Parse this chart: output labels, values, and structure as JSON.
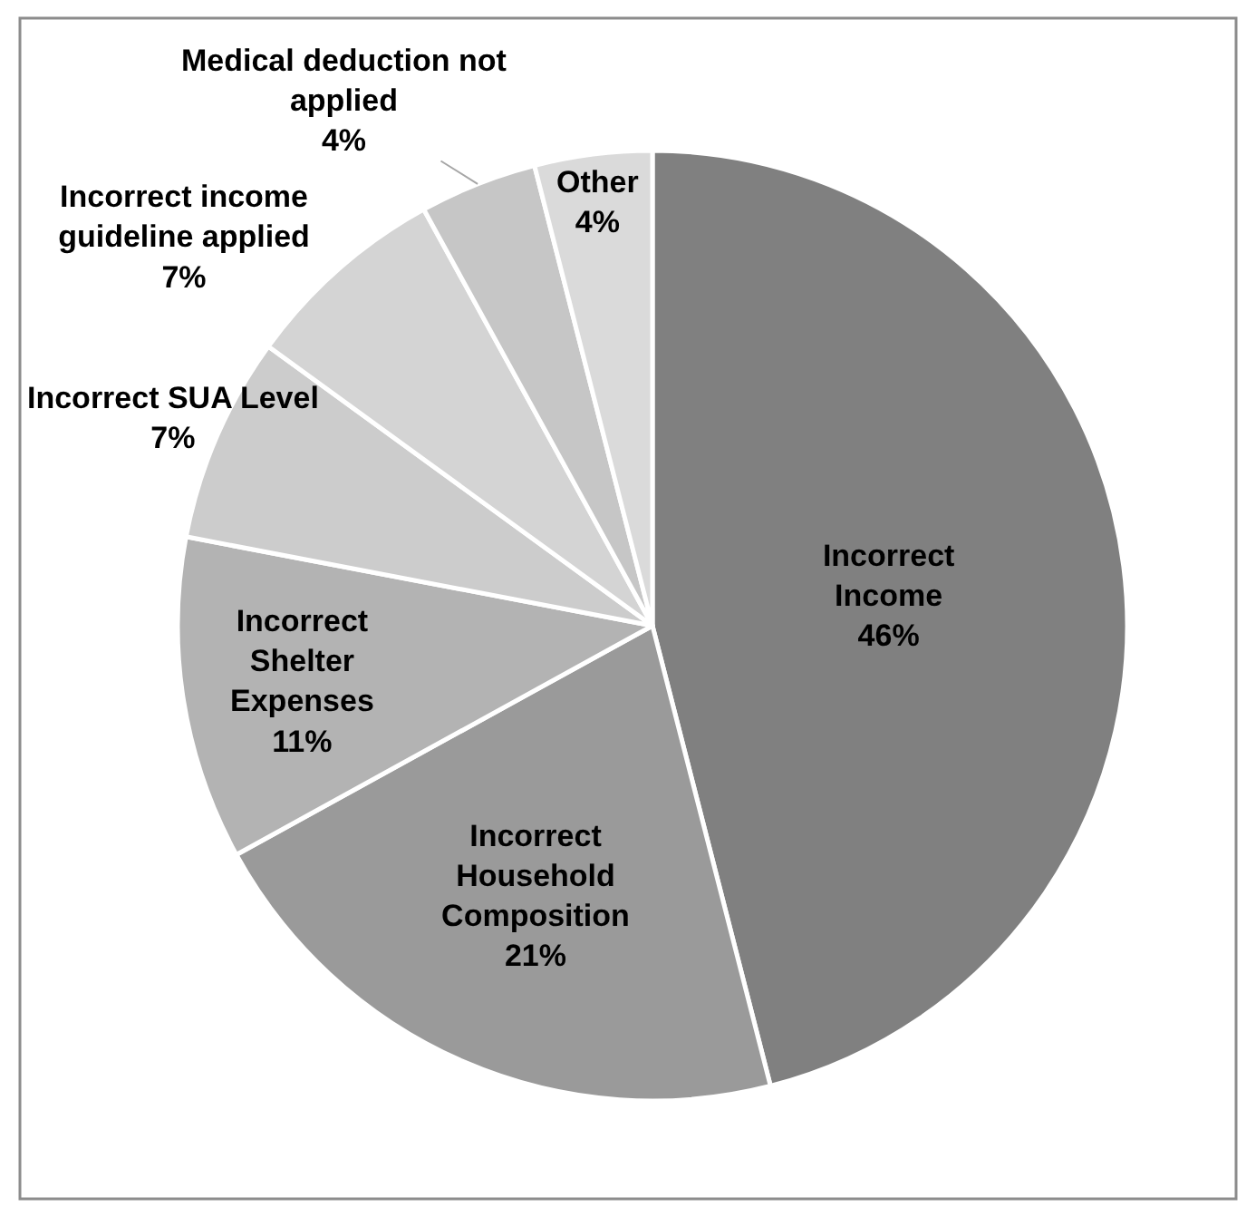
{
  "chart_data": {
    "type": "pie",
    "categories": [
      "Incorrect Income",
      "Incorrect Household Composition",
      "Incorrect Shelter Expenses",
      "Incorrect SUA Level",
      "Incorrect income guideline applied",
      "Medical deduction not applied",
      "Other"
    ],
    "values": [
      46,
      21,
      11,
      7,
      7,
      4,
      4
    ],
    "value_labels": [
      "46%",
      "21%",
      "11%",
      "7%",
      "7%",
      "4%",
      "4%"
    ],
    "colors": [
      "#808080",
      "#9a9a9a",
      "#b3b3b3",
      "#cccccc",
      "#d4d4d4",
      "#c6c6c6",
      "#dadada"
    ]
  }
}
